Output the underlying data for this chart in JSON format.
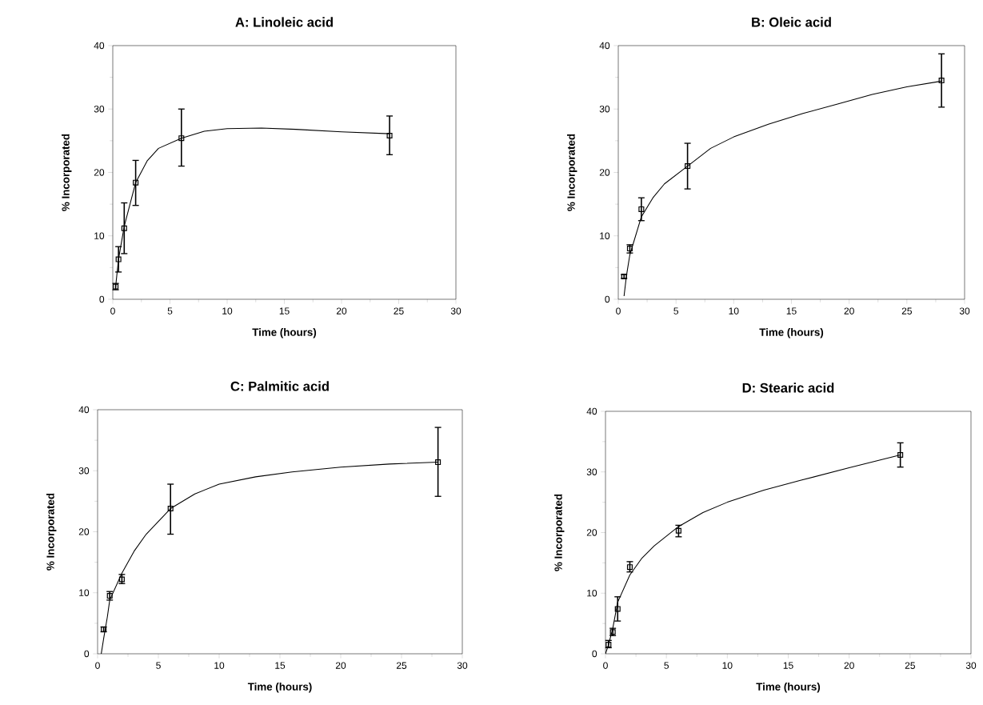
{
  "chart_data": [
    {
      "type": "scatter",
      "title": "A: Linoleic acid",
      "xlabel": "Time (hours)",
      "ylabel": "% Incorporated",
      "xlim": [
        0,
        30
      ],
      "ylim": [
        0,
        40
      ],
      "xticks": [
        0,
        5,
        10,
        15,
        20,
        25,
        30
      ],
      "yticks": [
        0,
        10,
        20,
        30,
        40
      ],
      "marker": "square",
      "series": [
        {
          "type": "scatter",
          "color": "#000000",
          "x": [
            0.25,
            0.5,
            1,
            2,
            6,
            24.2
          ],
          "values": [
            2,
            6.3,
            11.2,
            18.4,
            25.4,
            25.8
          ],
          "errors": [
            [
              1.5,
              2.5
            ],
            [
              4.3,
              8.3
            ],
            [
              7.2,
              15.2
            ],
            [
              14.8,
              21.9
            ],
            [
              21,
              30
            ],
            [
              22.8,
              28.9
            ]
          ]
        },
        {
          "type": "line",
          "color": "#000000",
          "marker": "none",
          "x": [
            0.25,
            0.5,
            1,
            2,
            3,
            4,
            6,
            8,
            10,
            13,
            16,
            20,
            24.2
          ],
          "values": [
            2,
            6.3,
            11.5,
            18.4,
            21.8,
            23.8,
            25.4,
            26.5,
            26.9,
            27,
            26.8,
            26.4,
            26.1
          ]
        }
      ]
    },
    {
      "type": "scatter",
      "title": "B: Oleic acid",
      "xlabel": "Time (hours)",
      "ylabel": "% Incorporated",
      "xlim": [
        0,
        30
      ],
      "ylim": [
        0,
        40
      ],
      "xticks": [
        0,
        5,
        10,
        15,
        20,
        25,
        30
      ],
      "yticks": [
        0,
        10,
        20,
        30,
        40
      ],
      "marker": "square",
      "series": [
        {
          "type": "scatter",
          "color": "#000000",
          "x": [
            0.5,
            1,
            2,
            6,
            28
          ],
          "values": [
            3.6,
            8,
            14.2,
            21,
            34.5
          ],
          "errors": [
            [
              3.3,
              3.9
            ],
            [
              7.3,
              8.6
            ],
            [
              12.4,
              16
            ],
            [
              17.4,
              24.6
            ],
            [
              30.3,
              38.7
            ]
          ]
        },
        {
          "type": "line",
          "color": "#000000",
          "marker": "none",
          "x": [
            0.5,
            0.7,
            1,
            2,
            3,
            4,
            6,
            8,
            10,
            13,
            16,
            19,
            22,
            25,
            28
          ],
          "values": [
            0.5,
            3.6,
            7,
            13,
            16,
            18.2,
            21,
            23.8,
            25.6,
            27.6,
            29.3,
            30.8,
            32.3,
            33.5,
            34.4
          ]
        }
      ]
    },
    {
      "type": "scatter",
      "title": "C: Palmitic acid",
      "xlabel": "Time (hours)",
      "ylabel": "% Incorporated",
      "xlim": [
        0,
        30
      ],
      "ylim": [
        0,
        40
      ],
      "xticks": [
        0,
        5,
        10,
        15,
        20,
        25,
        30
      ],
      "yticks": [
        0,
        10,
        20,
        30,
        40
      ],
      "marker": "square",
      "series": [
        {
          "type": "scatter",
          "color": "#000000",
          "x": [
            0.5,
            1,
            2,
            6,
            28
          ],
          "values": [
            4,
            9.5,
            12.2,
            23.8,
            31.4
          ],
          "errors": [
            [
              3.6,
              4.4
            ],
            [
              8.8,
              10.2
            ],
            [
              11.5,
              13
            ],
            [
              19.6,
              27.8
            ],
            [
              25.8,
              37.1
            ]
          ]
        },
        {
          "type": "line",
          "color": "#000000",
          "marker": "none",
          "x": [
            0.3,
            0.5,
            0.8,
            1,
            2,
            3,
            4,
            6,
            8,
            10,
            13,
            16,
            20,
            24,
            28
          ],
          "values": [
            0,
            2.5,
            6,
            8.8,
            13.2,
            16.8,
            19.6,
            23.8,
            26.2,
            27.8,
            29,
            29.8,
            30.6,
            31.1,
            31.4
          ]
        }
      ]
    },
    {
      "type": "scatter",
      "title": "D: Stearic acid",
      "xlabel": "Time (hours)",
      "ylabel": "% Incorporated",
      "xlim": [
        0,
        30
      ],
      "ylim": [
        0,
        40
      ],
      "xticks": [
        0,
        5,
        10,
        15,
        20,
        25,
        30
      ],
      "yticks": [
        0,
        10,
        20,
        30,
        40
      ],
      "marker": "square",
      "series": [
        {
          "type": "scatter",
          "color": "#000000",
          "x": [
            0.25,
            0.6,
            1,
            2,
            6,
            24.2
          ],
          "values": [
            1.5,
            3.6,
            7.4,
            14.3,
            20.3,
            32.8
          ],
          "errors": [
            [
              1,
              2.2
            ],
            [
              3,
              4.2
            ],
            [
              5.4,
              9.4
            ],
            [
              13.5,
              15.2
            ],
            [
              19.3,
              21.2
            ],
            [
              30.8,
              34.8
            ]
          ]
        },
        {
          "type": "line",
          "color": "#000000",
          "marker": "none",
          "x": [
            0,
            0.25,
            0.6,
            1,
            2,
            3,
            4,
            6,
            8,
            10,
            13,
            16,
            20,
            24.2
          ],
          "values": [
            0,
            1.5,
            4.2,
            8.5,
            13,
            15.8,
            17.8,
            21,
            23.3,
            25,
            27,
            28.6,
            30.7,
            32.8
          ]
        }
      ]
    }
  ]
}
